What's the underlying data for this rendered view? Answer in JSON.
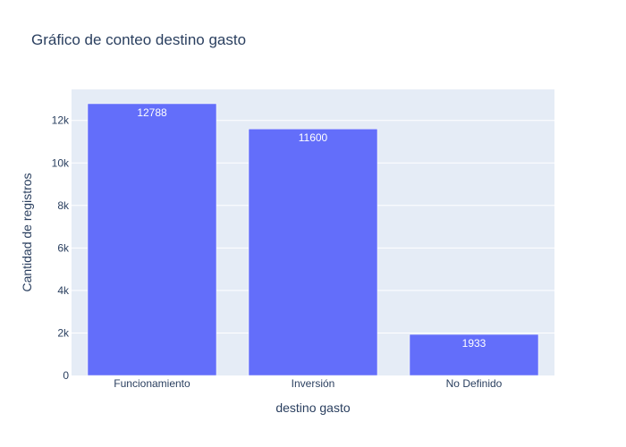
{
  "chart_data": {
    "type": "bar",
    "title": "Gráfico de conteo destino gasto",
    "xlabel": "destino gasto",
    "ylabel": "Cantidad de registros",
    "categories": [
      "Funcionamiento",
      "Inversión",
      "No Definido"
    ],
    "values": [
      12788,
      11600,
      1933
    ],
    "value_labels": [
      "12788",
      "11600",
      "1933"
    ],
    "ylim": [
      0,
      13460
    ],
    "yticks": [
      0,
      2000,
      4000,
      6000,
      8000,
      10000,
      12000
    ],
    "ytick_labels": [
      "0",
      "2k",
      "4k",
      "6k",
      "8k",
      "10k",
      "12k"
    ],
    "grid": true,
    "legend": false,
    "colors": {
      "bar": "#636efa",
      "plot_bg": "#e5ecf6",
      "grid": "#ffffff",
      "text": "#2a3f5f"
    }
  }
}
